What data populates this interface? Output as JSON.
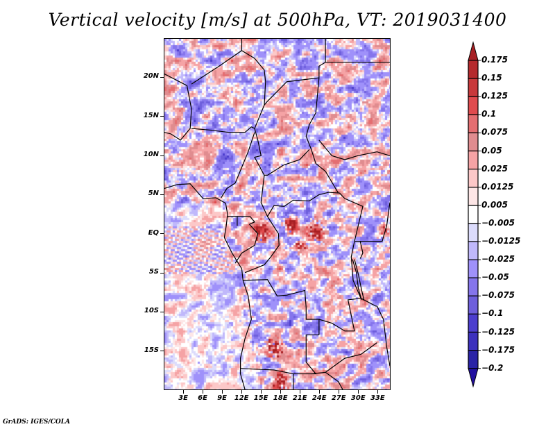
{
  "chart_data": {
    "type": "heatmap",
    "title": "Vertical velocity [m/s] at 500hPa, VT: 2019031400",
    "variable": "Vertical velocity",
    "units": "m/s",
    "level": "500hPa",
    "valid_time": "2019031400",
    "xlabel": "",
    "ylabel": "",
    "x_ticks": [
      "3E",
      "6E",
      "9E",
      "12E",
      "15E",
      "18E",
      "21E",
      "24E",
      "27E",
      "30E",
      "33E"
    ],
    "x_tick_values": [
      3,
      6,
      9,
      12,
      15,
      18,
      21,
      24,
      27,
      30,
      33
    ],
    "y_ticks": [
      "20N",
      "15N",
      "10N",
      "5N",
      "EQ",
      "5S",
      "10S",
      "15S"
    ],
    "y_tick_values": [
      20,
      15,
      10,
      5,
      0,
      -5,
      -10,
      -15
    ],
    "xlim": [
      0,
      35
    ],
    "ylim": [
      -20,
      25
    ],
    "colorbar": {
      "position": "right",
      "extend": "both",
      "levels": [
        0.175,
        0.15,
        0.125,
        0.1,
        0.075,
        0.05,
        0.025,
        0.0125,
        0.005,
        -0.005,
        -0.0125,
        -0.025,
        -0.05,
        -0.075,
        -0.1,
        -0.125,
        -0.175,
        -0.2
      ],
      "labels": [
        "0.175",
        "0.15",
        "0.125",
        "0.1",
        "0.075",
        "0.05",
        "0.025",
        "0.0125",
        "0.005",
        "−0.005",
        "−0.0125",
        "−0.025",
        "−0.05",
        "−0.075",
        "−0.1",
        "−0.125",
        "−0.175",
        "−0.2"
      ],
      "colors": [
        "#a71f23",
        "#b52a2d",
        "#c8393b",
        "#e04b4e",
        "#e46e71",
        "#e08c8f",
        "#f5a3a5",
        "#fcc8c8",
        "#fde6e6",
        "#ffffff",
        "#dcdcfc",
        "#c0b8fb",
        "#9f91fa",
        "#8575ec",
        "#6e5fdc",
        "#4c3ece",
        "#3c30bd",
        "#2a23a6",
        "#22109f"
      ]
    },
    "features": {
      "strong_upward_regions": [
        "Gabon/Congo ~15E EQ",
        "DR Congo ~18-23E 1N-2S",
        "Angola ~16E 14S",
        "Namibia ~17E 18S"
      ],
      "coastlines_and_borders": true
    }
  },
  "footer": "GrADS: IGES/COLA"
}
